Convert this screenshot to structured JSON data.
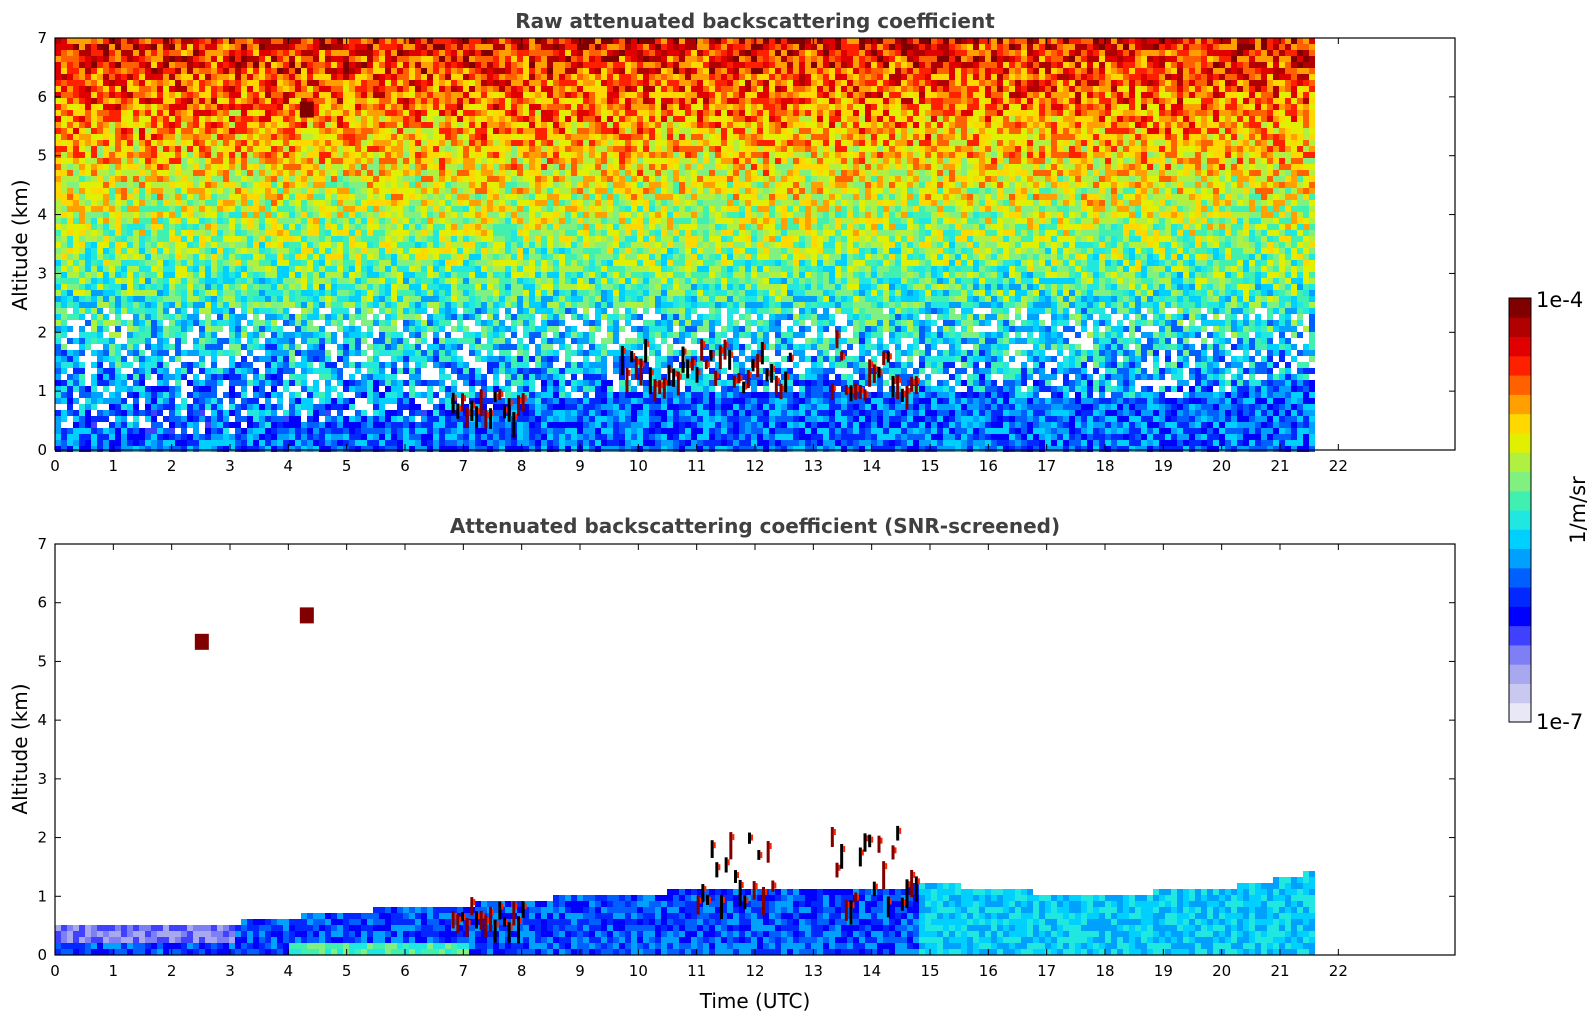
{
  "figure": {
    "colorbar": {
      "max_label": "1e-4",
      "min_label": "1e-7",
      "unit_label": "1/m/sr",
      "colors": [
        "#e8e8f6",
        "#c8c8f0",
        "#a8a8ee",
        "#7f7ff5",
        "#4040ff",
        "#0000ff",
        "#0028ff",
        "#0060ff",
        "#00a0ff",
        "#00d0ff",
        "#20e8e0",
        "#40f0b0",
        "#80f080",
        "#b0f040",
        "#e0f000",
        "#ffd800",
        "#ffa000",
        "#ff6000",
        "#ff2000",
        "#e00000",
        "#b00000",
        "#800000"
      ]
    },
    "xlabel": "Time (UTC)"
  },
  "chart_data": [
    {
      "type": "heatmap",
      "title": "Raw attenuated backscattering coefficient",
      "ylabel": "Altitude (km)",
      "xlabel": "",
      "xlim": [
        0,
        24
      ],
      "ylim": [
        0,
        7
      ],
      "x_ticks": [
        0,
        1,
        2,
        3,
        4,
        5,
        6,
        7,
        8,
        9,
        10,
        11,
        12,
        13,
        14,
        15,
        16,
        17,
        18,
        19,
        20,
        21,
        22
      ],
      "y_ticks": [
        0,
        1,
        2,
        3,
        4,
        5,
        6,
        7
      ],
      "data_end_hour": 21.6,
      "value_scale": "log",
      "value_range": [
        1e-07,
        0.0001
      ],
      "features": [
        {
          "kind": "boundary_layer",
          "x_start": 0,
          "x_end": 21.6,
          "y_top_km": [
            0.4,
            0.4,
            0.35,
            0.35,
            0.45,
            0.6,
            0.55,
            0.7,
            0.85,
            0.95,
            1.0,
            1.0,
            1.0,
            1.05,
            1.05,
            1.1,
            1.0,
            0.95,
            0.9,
            0.95,
            1.05,
            1.2,
            1.3
          ]
        },
        {
          "kind": "cloud_tops",
          "x_range": [
            6.8,
            8.0
          ],
          "y_range_km": [
            0.6,
            1.1
          ]
        },
        {
          "kind": "cloud_tops",
          "x_range": [
            9.7,
            12.6
          ],
          "y_range_km": [
            1.1,
            1.9
          ]
        },
        {
          "kind": "cloud_tops",
          "x_range": [
            13.3,
            14.8
          ],
          "y_range_km": [
            1.0,
            2.1
          ]
        },
        {
          "kind": "elevated_cloud",
          "x": 4.3,
          "y_km": 5.75
        }
      ]
    },
    {
      "type": "heatmap",
      "title": "Attenuated backscattering coefficient (SNR-screened)",
      "ylabel": "Altitude (km)",
      "xlabel": "Time (UTC)",
      "xlim": [
        0,
        24
      ],
      "ylim": [
        0,
        7
      ],
      "x_ticks": [
        0,
        1,
        2,
        3,
        4,
        5,
        6,
        7,
        8,
        9,
        10,
        11,
        12,
        13,
        14,
        15,
        16,
        17,
        18,
        19,
        20,
        21,
        22
      ],
      "y_ticks": [
        0,
        1,
        2,
        3,
        4,
        5,
        6,
        7
      ],
      "data_end_hour": 21.6,
      "value_scale": "log",
      "value_range": [
        1e-07,
        0.0001
      ],
      "features": [
        {
          "kind": "boundary_layer",
          "x_start": 0,
          "x_end": 21.6,
          "y_top_km": [
            0.55,
            0.6,
            0.55,
            0.6,
            0.7,
            0.8,
            0.85,
            0.9,
            1.0,
            1.05,
            1.1,
            1.15,
            1.15,
            1.2,
            1.2,
            1.25,
            1.2,
            1.1,
            1.05,
            1.15,
            1.2,
            1.35,
            1.6
          ]
        },
        {
          "kind": "cloud_tops",
          "x_range": [
            6.8,
            8.0
          ],
          "y_range_km": [
            0.55,
            1.0
          ]
        },
        {
          "kind": "cloud_tops",
          "x_range": [
            11.0,
            12.3
          ],
          "y_range_km": [
            1.0,
            2.1
          ]
        },
        {
          "kind": "cloud_tops",
          "x_range": [
            13.3,
            14.8
          ],
          "y_range_km": [
            0.9,
            2.2
          ]
        },
        {
          "kind": "elevated_cloud",
          "x": 4.3,
          "y_km": 5.75
        },
        {
          "kind": "elevated_cloud",
          "x": 2.5,
          "y_km": 5.3
        }
      ]
    }
  ]
}
